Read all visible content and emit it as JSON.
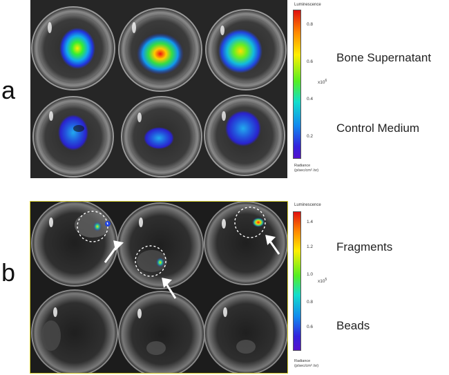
{
  "panels": [
    {
      "letter": "a",
      "rows": [
        "Bone Supernatant",
        "Control Medium"
      ],
      "scale": {
        "title": "Luminescence",
        "ticks": [
          "0.8",
          "0.6",
          "0.4",
          "0.2"
        ],
        "multiplier": "x10",
        "exponent": "6",
        "unit_line1": "Radiance",
        "unit_line2": "(p/sec/cm² /sr)"
      }
    },
    {
      "letter": "b",
      "rows": [
        "Fragments",
        "Beads"
      ],
      "scale": {
        "title": "Luminescence",
        "ticks": [
          "1.4",
          "1.2",
          "1.0",
          "0.8",
          "0.6"
        ],
        "multiplier": "x10",
        "exponent": "5",
        "unit_line1": "Radiance",
        "unit_line2": "(p/sec/cm² /sr)"
      }
    }
  ]
}
